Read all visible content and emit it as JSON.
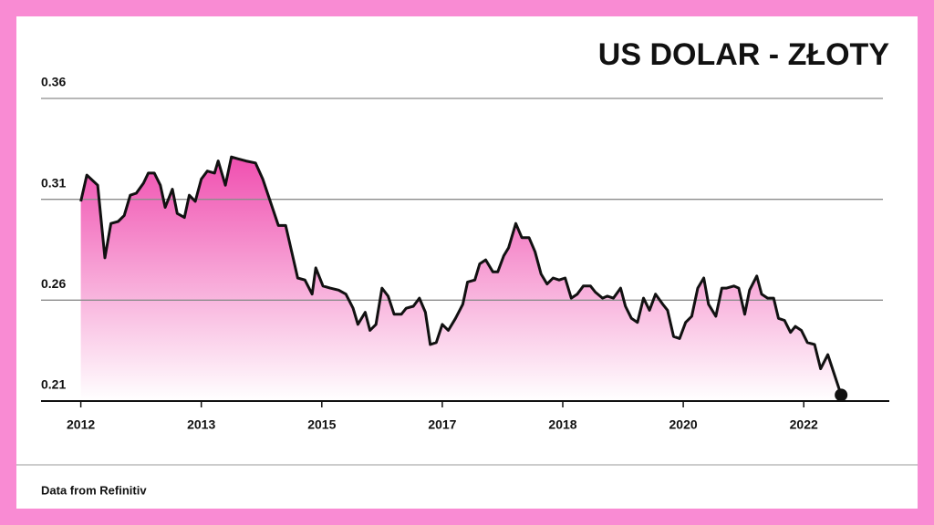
{
  "chart_data": {
    "type": "area",
    "title": "US DOLAR - ZŁOTY",
    "source": "Data from Refinitiv",
    "line_color": "#111111",
    "fill_color": "#f04fb0",
    "grid": true,
    "end_marker": true,
    "xlim": [
      -0.33,
      6.71
    ],
    "xticks": [
      {
        "value": 0,
        "label": "2012"
      },
      {
        "value": 1,
        "label": "2013"
      },
      {
        "value": 2,
        "label": "2015"
      },
      {
        "value": 3,
        "label": "2017"
      },
      {
        "value": 4,
        "label": "2018"
      },
      {
        "value": 5,
        "label": "2020"
      },
      {
        "value": 6,
        "label": "2022"
      }
    ],
    "ylim": [
      0.21,
      0.36
    ],
    "yticks": [
      0.21,
      0.26,
      0.31,
      0.36
    ],
    "x": [
      0,
      0.05,
      0.14,
      0.2,
      0.25,
      0.31,
      0.36,
      0.41,
      0.46,
      0.52,
      0.56,
      0.61,
      0.66,
      0.7,
      0.76,
      0.8,
      0.86,
      0.9,
      0.95,
      1,
      1.05,
      1.11,
      1.14,
      1.2,
      1.25,
      1.31,
      1.37,
      1.45,
      1.51,
      1.6,
      1.64,
      1.7,
      1.75,
      1.8,
      1.86,
      1.92,
      1.95,
      2.01,
      2.07,
      2.14,
      2.2,
      2.26,
      2.3,
      2.36,
      2.4,
      2.45,
      2.5,
      2.55,
      2.6,
      2.66,
      2.7,
      2.76,
      2.81,
      2.86,
      2.9,
      2.95,
      3,
      3.05,
      3.11,
      3.17,
      3.21,
      3.27,
      3.31,
      3.36,
      3.42,
      3.46,
      3.51,
      3.55,
      3.61,
      3.66,
      3.72,
      3.77,
      3.82,
      3.87,
      3.92,
      3.97,
      4.02,
      4.07,
      4.12,
      4.17,
      4.23,
      4.27,
      4.33,
      4.37,
      4.42,
      4.48,
      4.52,
      4.57,
      4.62,
      4.67,
      4.72,
      4.77,
      4.83,
      4.87,
      4.92,
      4.97,
      5.02,
      5.07,
      5.12,
      5.17,
      5.21,
      5.27,
      5.32,
      5.36,
      5.42,
      5.46,
      5.51,
      5.55,
      5.61,
      5.65,
      5.7,
      5.75,
      5.79,
      5.84,
      5.89,
      5.93,
      5.98,
      6.03,
      6.09,
      6.14,
      6.2,
      6.31
    ],
    "values": [
      0.309,
      0.322,
      0.317,
      0.281,
      0.298,
      0.299,
      0.302,
      0.312,
      0.313,
      0.318,
      0.323,
      0.323,
      0.317,
      0.306,
      0.315,
      0.303,
      0.301,
      0.312,
      0.309,
      0.32,
      0.324,
      0.323,
      0.329,
      0.317,
      0.331,
      0.33,
      0.329,
      0.328,
      0.32,
      0.304,
      0.297,
      0.297,
      0.284,
      0.271,
      0.27,
      0.263,
      0.276,
      0.267,
      0.266,
      0.265,
      0.263,
      0.256,
      0.248,
      0.254,
      0.245,
      0.248,
      0.266,
      0.262,
      0.253,
      0.253,
      0.256,
      0.257,
      0.261,
      0.254,
      0.238,
      0.239,
      0.248,
      0.245,
      0.251,
      0.258,
      0.269,
      0.27,
      0.278,
      0.28,
      0.274,
      0.274,
      0.282,
      0.286,
      0.298,
      0.291,
      0.291,
      0.284,
      0.273,
      0.268,
      0.271,
      0.27,
      0.271,
      0.261,
      0.263,
      0.267,
      0.267,
      0.264,
      0.261,
      0.262,
      0.261,
      0.266,
      0.257,
      0.251,
      0.249,
      0.261,
      0.255,
      0.263,
      0.258,
      0.255,
      0.242,
      0.241,
      0.249,
      0.252,
      0.266,
      0.271,
      0.258,
      0.252,
      0.266,
      0.266,
      0.267,
      0.266,
      0.253,
      0.265,
      0.272,
      0.263,
      0.261,
      0.261,
      0.251,
      0.25,
      0.244,
      0.247,
      0.245,
      0.239,
      0.238,
      0.226,
      0.233,
      0.213
    ]
  }
}
